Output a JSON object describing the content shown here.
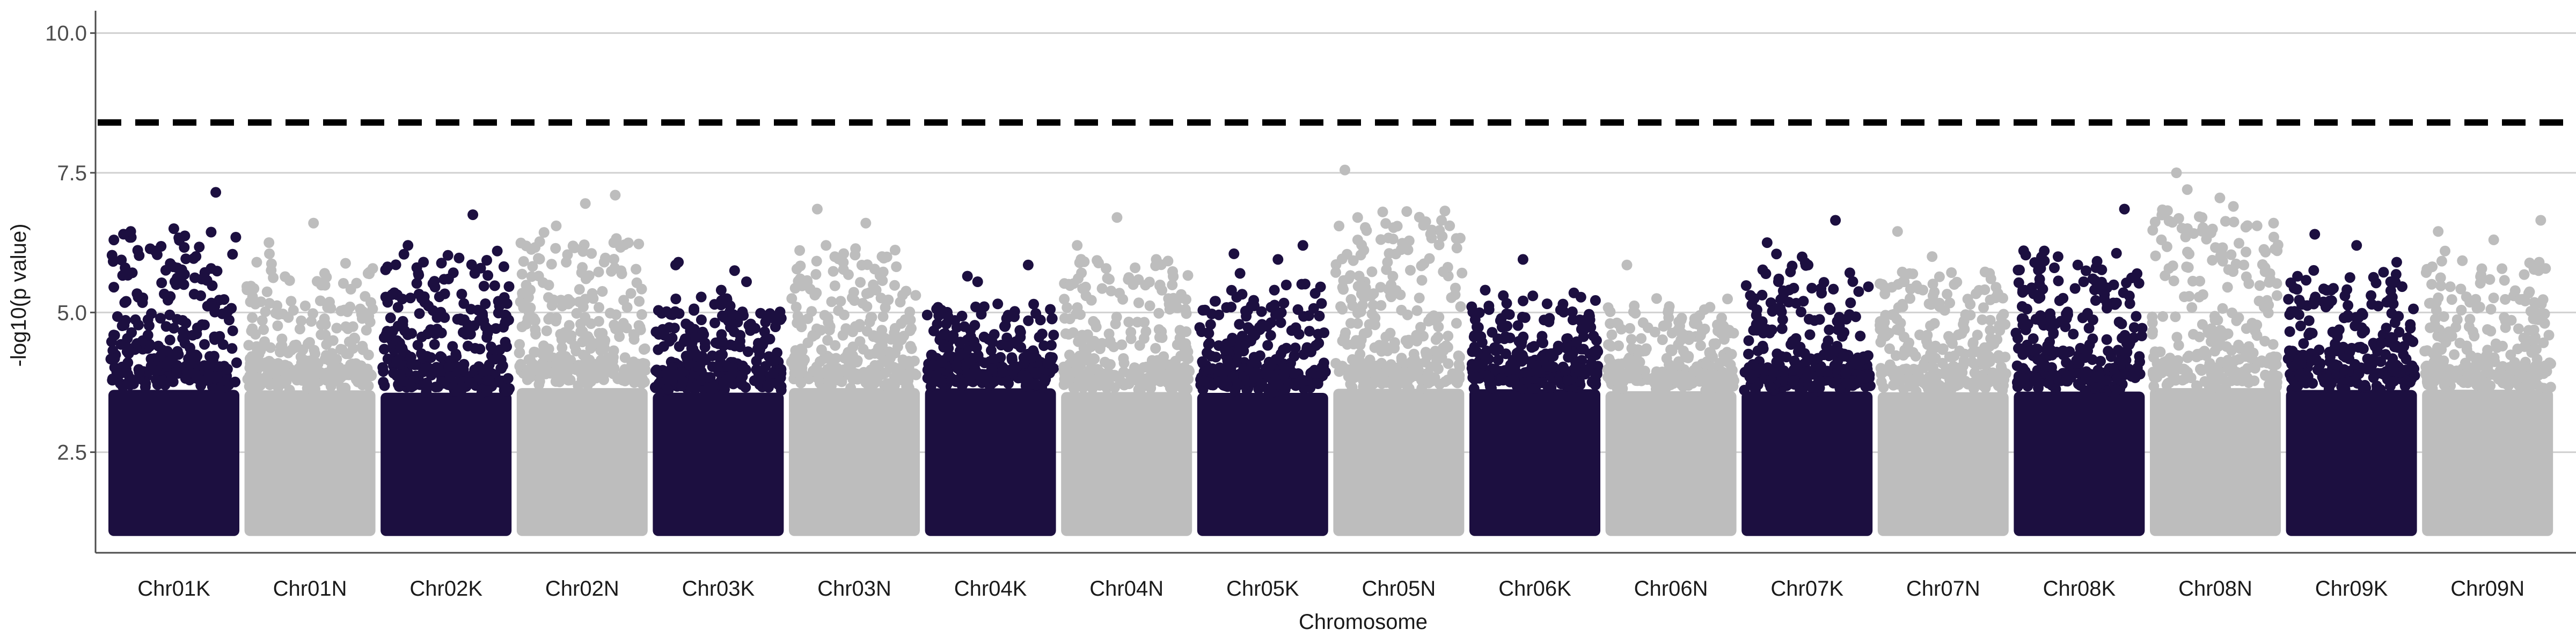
{
  "chart_data": {
    "type": "scatter",
    "subtype": "manhattan",
    "xlabel": "Chromosome",
    "ylabel": "-log10(p value)",
    "ylim": [
      0.7,
      10.4
    ],
    "yticks": [
      2.5,
      5.0,
      7.5,
      10.0
    ],
    "ytick_labels": [
      "2.5",
      "5.0",
      "7.5",
      "10.0"
    ],
    "grid": "horizontal",
    "legend": "none",
    "threshold": 8.4,
    "threshold_style": "dashed",
    "colors": {
      "odd": "#1c0f40",
      "even": "#bdbdbd",
      "threshold": "#000000"
    },
    "chromosomes": [
      {
        "name": "Chr01K",
        "max": 7.15,
        "top_points": [
          5.8,
          5.5,
          5.3,
          6.45,
          6.5,
          7.15
        ]
      },
      {
        "name": "Chr01N",
        "max": 6.6,
        "top_points": [
          6.05,
          5.7,
          5.9,
          6.25,
          6.6
        ]
      },
      {
        "name": "Chr02K",
        "max": 6.75,
        "top_points": [
          5.25,
          5.6,
          6.1,
          6.2,
          6.75
        ]
      },
      {
        "name": "Chr02N",
        "max": 7.1,
        "top_points": [
          6.55,
          6.95,
          7.1,
          5.9
        ]
      },
      {
        "name": "Chr03K",
        "max": 5.9,
        "top_points": [
          5.9,
          5.75,
          5.55,
          5.85,
          5.4
        ]
      },
      {
        "name": "Chr03N",
        "max": 6.85,
        "top_points": [
          6.85,
          6.6,
          6.0,
          6.2
        ]
      },
      {
        "name": "Chr04K",
        "max": 5.85,
        "top_points": [
          5.65,
          5.55,
          5.85,
          5.1
        ]
      },
      {
        "name": "Chr04N",
        "max": 6.7,
        "top_points": [
          6.2,
          6.7,
          5.95
        ]
      },
      {
        "name": "Chr05K",
        "max": 6.2,
        "top_points": [
          5.7,
          5.4,
          6.2,
          6.05,
          5.95
        ]
      },
      {
        "name": "Chr05N",
        "max": 7.55,
        "top_points": [
          6.7,
          5.9,
          7.55
        ]
      },
      {
        "name": "Chr06K",
        "max": 5.95,
        "top_points": [
          5.4,
          5.95,
          5.35
        ]
      },
      {
        "name": "Chr06N",
        "max": 5.85,
        "top_points": [
          5.85,
          5.25
        ]
      },
      {
        "name": "Chr07K",
        "max": 6.65,
        "top_points": [
          6.25,
          5.85,
          6.65,
          5.6
        ]
      },
      {
        "name": "Chr07N",
        "max": 6.45,
        "top_points": [
          6.45,
          6.0,
          5.7
        ]
      },
      {
        "name": "Chr08K",
        "max": 6.85,
        "top_points": [
          5.8,
          5.55,
          6.85
        ]
      },
      {
        "name": "Chr08N",
        "max": 7.5,
        "top_points": [
          7.2,
          7.05,
          6.3,
          7.5,
          5.85
        ]
      },
      {
        "name": "Chr09K",
        "max": 6.4,
        "top_points": [
          6.4,
          6.2,
          5.9
        ]
      },
      {
        "name": "Chr09N",
        "max": 6.65,
        "top_points": [
          6.45,
          6.3,
          6.65,
          6.1
        ]
      }
    ]
  }
}
